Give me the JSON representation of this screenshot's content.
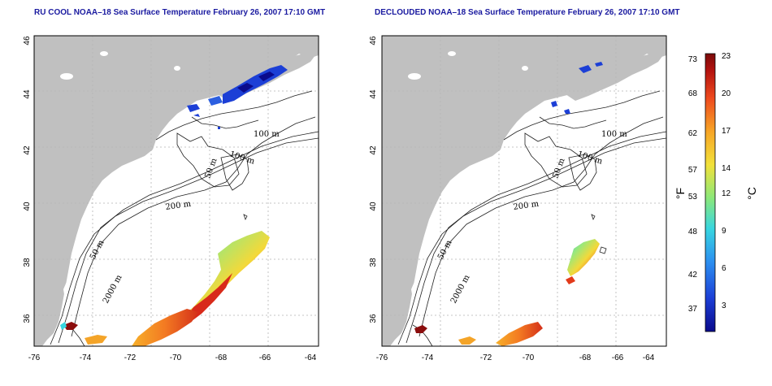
{
  "panels": [
    {
      "title": "RU COOL NOAA–18 Sea Surface Temperature February 26, 2007 17:10 GMT",
      "x_ticks": [
        "-76",
        "-74",
        "-72",
        "-70",
        "-68",
        "-66",
        "-64"
      ],
      "y_ticks": [
        "36",
        "38",
        "40",
        "42",
        "44",
        "46"
      ],
      "contour_labels": [
        "100 m",
        "100 m",
        "50 m",
        "200 m",
        "50 m",
        "2000 m"
      ]
    },
    {
      "title": "DECLOUDED NOAA–18 Sea Surface Temperature February 26, 2007 17:10 GMT",
      "x_ticks": [
        "-76",
        "-74",
        "-72",
        "-70",
        "-68",
        "-66",
        "-64"
      ],
      "y_ticks": [
        "36",
        "38",
        "40",
        "42",
        "44",
        "46"
      ],
      "contour_labels": [
        "100 m",
        "100 m",
        "50 m",
        "200 m",
        "50 m",
        "2000 m"
      ]
    }
  ],
  "colorbar": {
    "fahrenheit_label": "°F",
    "celsius_label": "°C",
    "fahrenheit_ticks": [
      "73",
      "68",
      "62",
      "57",
      "53",
      "48",
      "42",
      "37"
    ],
    "celsius_ticks": [
      "23",
      "20",
      "17",
      "14",
      "12",
      "9",
      "6",
      "3"
    ],
    "gradient_colors": [
      "#0a0a8c",
      "#1c3fd6",
      "#2c8ff0",
      "#38d6e0",
      "#8be87a",
      "#f2e13a",
      "#f7a526",
      "#ee4a1e",
      "#b3120f",
      "#7a0a0a"
    ]
  },
  "colors": {
    "land": "#c0c0c0",
    "water": "#ffffff",
    "grid": "#b4b4b4",
    "title": "#1a1aa0"
  }
}
